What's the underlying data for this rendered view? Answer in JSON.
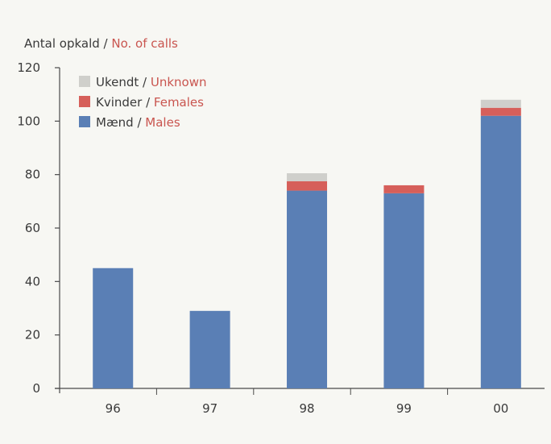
{
  "chart_data": {
    "type": "bar",
    "stacked": true,
    "ylabel_primary": "Antal opkald",
    "ylabel_separator": " / ",
    "ylabel_secondary": "No. of calls",
    "categories": [
      "96",
      "97",
      "98",
      "99",
      "00"
    ],
    "ylim": [
      0,
      120
    ],
    "yticks": [
      0,
      20,
      40,
      60,
      80,
      100,
      120
    ],
    "grid": false,
    "legend_position": "top-left",
    "series": [
      {
        "name": "Mænd / Males",
        "name_primary": "Mænd",
        "name_secondary": "Males",
        "color": "#5a7fb5",
        "values": [
          45,
          29,
          74,
          73,
          102
        ]
      },
      {
        "name": "Kvinder / Females",
        "name_primary": "Kvinder",
        "name_secondary": "Females",
        "color": "#d65f5a",
        "values": [
          0,
          0,
          3.5,
          3,
          3
        ]
      },
      {
        "name": "Ukendt / Unknown",
        "name_primary": "Ukendt",
        "name_secondary": "Unknown",
        "color": "#cfcfcb",
        "values": [
          0,
          0,
          3,
          0,
          3
        ]
      }
    ],
    "legend_order": [
      2,
      1,
      0
    ]
  },
  "colors": {
    "axis": "#4a4a4a",
    "text_black": "#3a3a3a",
    "text_red": "#c9554f"
  }
}
